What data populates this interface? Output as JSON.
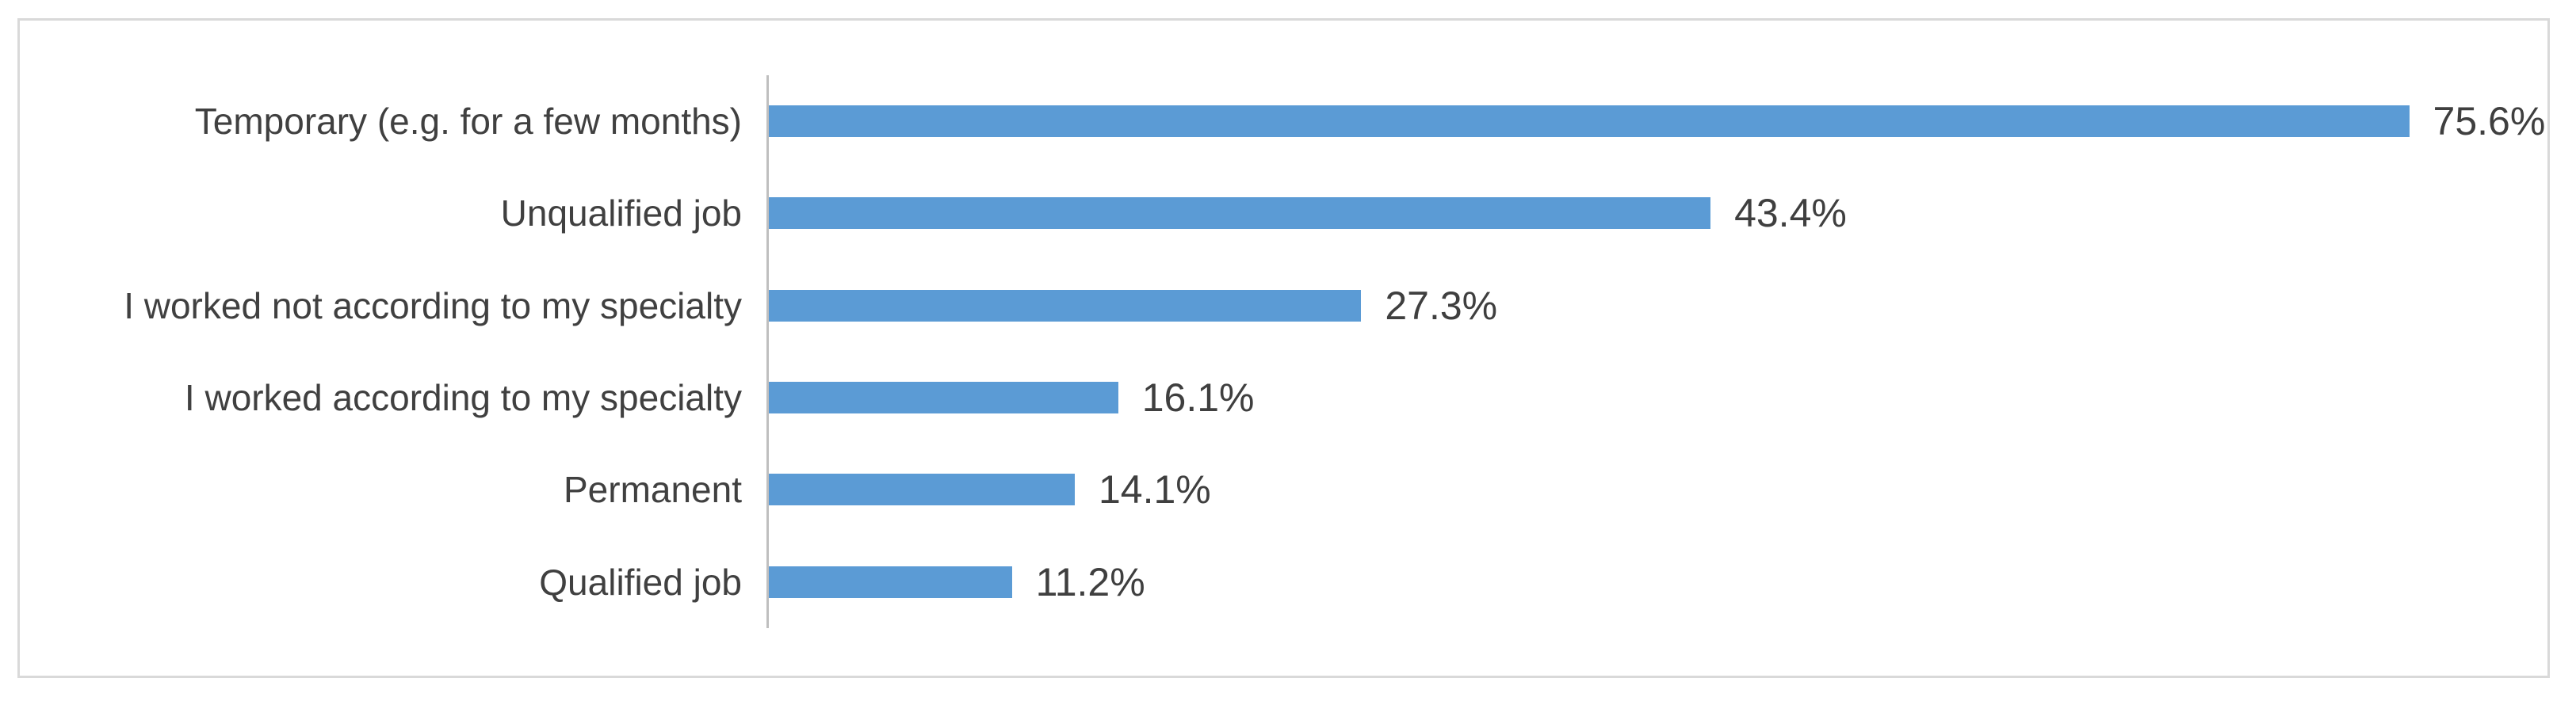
{
  "chart_data": {
    "type": "bar",
    "orientation": "horizontal",
    "title": "",
    "xlabel": "",
    "ylabel": "",
    "xlim": [
      0,
      80
    ],
    "grid": false,
    "legend": false,
    "sort_order": "descending",
    "categories": [
      "Temporary (e.g. for a few months)",
      "Unqualified job",
      "I worked not according to my specialty",
      "I worked according to my specialty",
      "Permanent",
      "Qualified job"
    ],
    "values": [
      75.6,
      43.4,
      27.3,
      16.1,
      14.1,
      11.2
    ],
    "value_labels": [
      "75.6%",
      "43.4%",
      "27.3%",
      "16.1%",
      "14.1%",
      "11.2%"
    ],
    "bar_color": "#5b9bd5",
    "axis_line_color": "#bfbfbf",
    "label_color": "#404040",
    "frame_border_color": "#d9d9d9"
  }
}
